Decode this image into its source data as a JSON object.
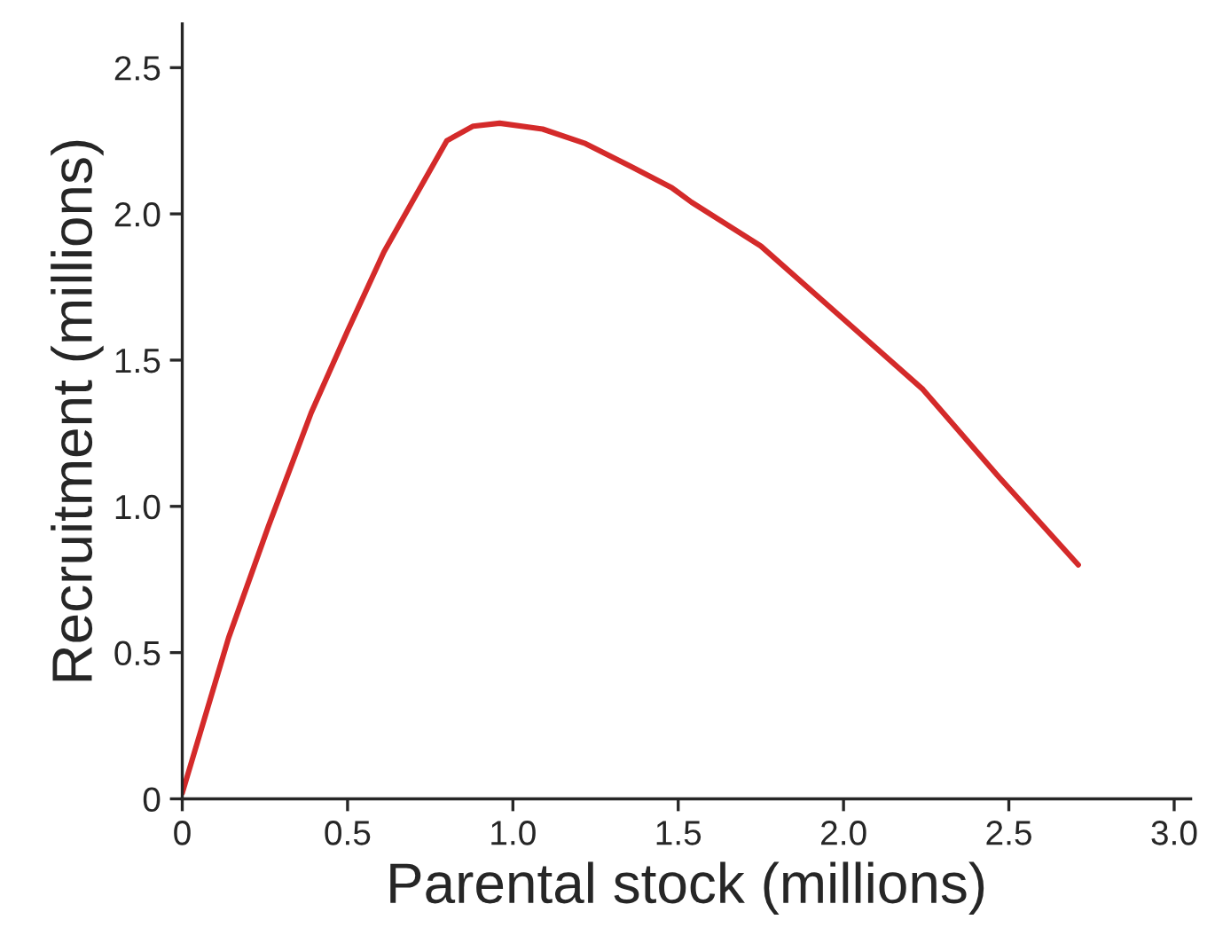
{
  "chart_data": {
    "type": "line",
    "xlabel": "Parental stock (millions)",
    "ylabel": "Recruitment (millions)",
    "xlim": [
      0,
      3.05
    ],
    "ylim": [
      0,
      2.65
    ],
    "xticks": [
      {
        "value": 0,
        "label": "0"
      },
      {
        "value": 0.5,
        "label": "0.5"
      },
      {
        "value": 1.0,
        "label": "1.0"
      },
      {
        "value": 1.5,
        "label": "1.5"
      },
      {
        "value": 2.0,
        "label": "2.0"
      },
      {
        "value": 2.5,
        "label": "2.5"
      },
      {
        "value": 3.0,
        "label": "3.0"
      }
    ],
    "yticks": [
      {
        "value": 0,
        "label": "0"
      },
      {
        "value": 0.5,
        "label": "0.5"
      },
      {
        "value": 1.0,
        "label": "1.0"
      },
      {
        "value": 1.5,
        "label": "1.5"
      },
      {
        "value": 2.0,
        "label": "2.0"
      },
      {
        "value": 2.5,
        "label": "2.5"
      }
    ],
    "grid": false,
    "marker": "none",
    "line_style": "solid",
    "series": [
      {
        "color": "#d42a2a",
        "x": [
          0,
          0.14,
          0.26,
          0.39,
          0.5,
          0.61,
          0.7,
          0.8,
          0.88,
          0.96,
          1.09,
          1.22,
          1.36,
          1.48,
          1.54,
          1.75,
          2.0,
          2.24,
          2.47,
          2.71
        ],
        "values": [
          0.02,
          0.55,
          0.93,
          1.32,
          1.6,
          1.87,
          2.05,
          2.25,
          2.3,
          2.31,
          2.29,
          2.24,
          2.16,
          2.09,
          2.04,
          1.89,
          1.64,
          1.4,
          1.1,
          0.8
        ]
      }
    ]
  }
}
